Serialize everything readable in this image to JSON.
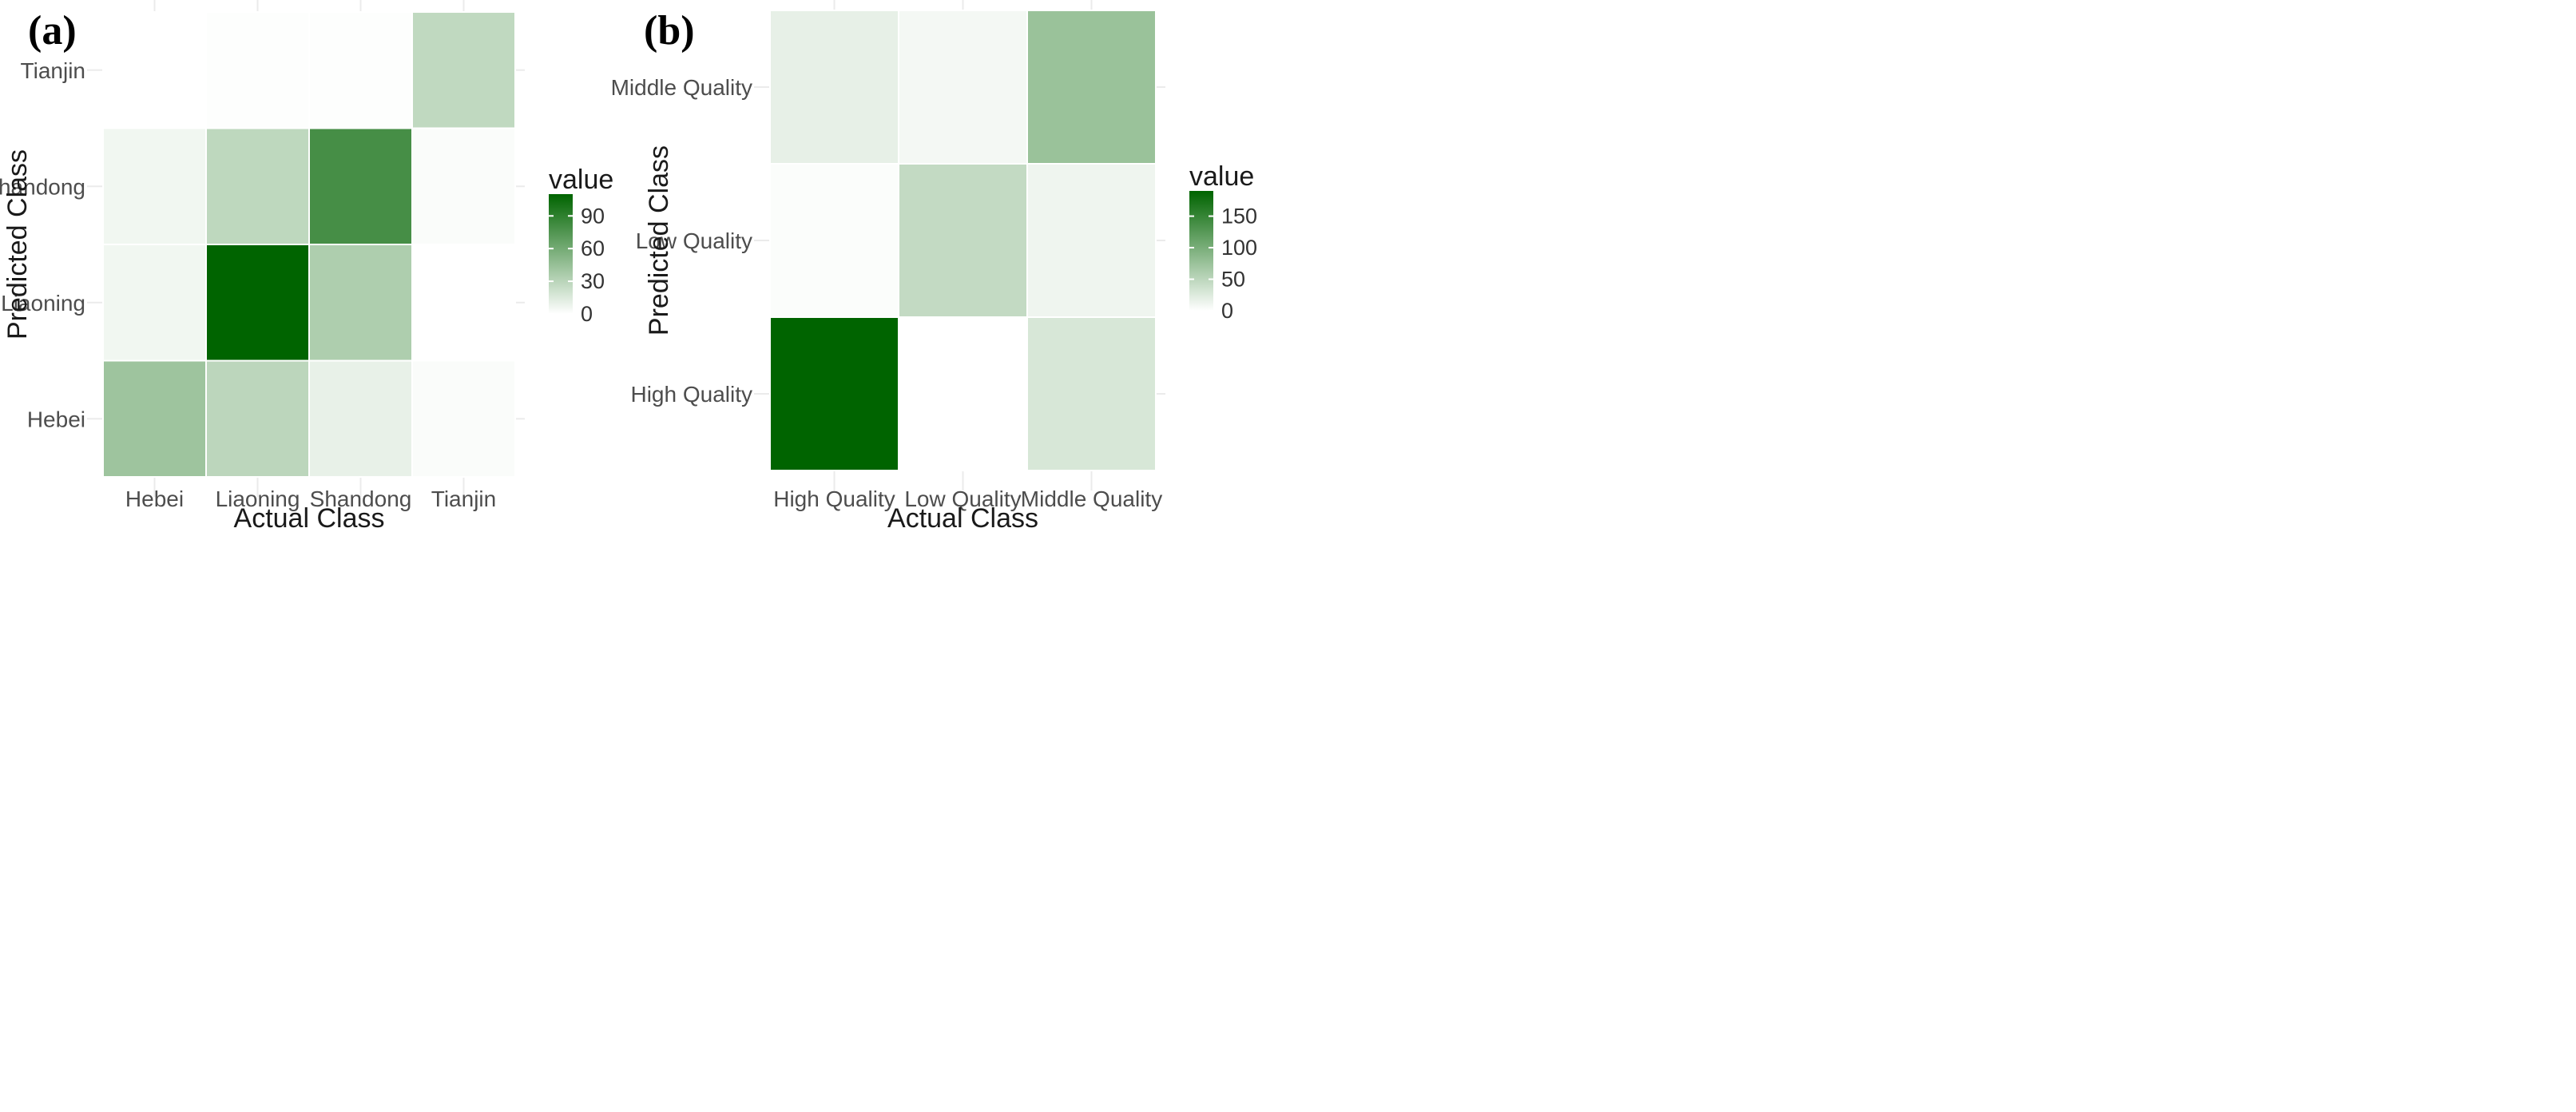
{
  "chart_data": [
    {
      "type": "heatmap",
      "panel_label": "(a)",
      "x_categories": [
        "Hebei",
        "Liaoning",
        "Shandong",
        "Tianjin"
      ],
      "y_categories": [
        "Hebei",
        "Liaoning",
        "Shandong",
        "Tianjin"
      ],
      "xlabel": "Actual Class",
      "ylabel": "Predicted Class",
      "values": [
        [
          42,
          29,
          10,
          2
        ],
        [
          6,
          110,
          35,
          0
        ],
        [
          6,
          28,
          80,
          2
        ],
        [
          0,
          1,
          1,
          27
        ]
      ],
      "legend": {
        "title": "value",
        "min": 0,
        "max": 110,
        "ticks": [
          0,
          30,
          60,
          90
        ],
        "tick_labels": [
          "0",
          "30",
          "60",
          "90"
        ]
      },
      "color_low": "#ffffff",
      "color_high": "#006400"
    },
    {
      "type": "heatmap",
      "panel_label": "(b)",
      "x_categories": [
        "High Quality",
        "Low Quality",
        "Middle Quality"
      ],
      "y_categories": [
        "High Quality",
        "Low Quality",
        "Middle Quality"
      ],
      "xlabel": "Actual Class",
      "ylabel": "Predicted Class",
      "values": [
        [
          190,
          0,
          30
        ],
        [
          3,
          45,
          12
        ],
        [
          18,
          8,
          75
        ]
      ],
      "legend": {
        "title": "value",
        "min": 0,
        "max": 190,
        "ticks": [
          0,
          50,
          100,
          150
        ],
        "tick_labels": [
          "0",
          "50",
          "100",
          "150"
        ]
      },
      "color_low": "#ffffff",
      "color_high": "#006400"
    }
  ]
}
